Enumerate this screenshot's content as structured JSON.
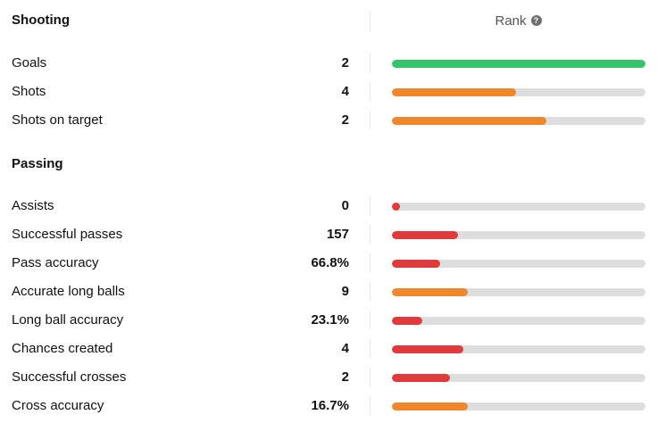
{
  "header": {
    "rank_label": "Rank",
    "help_glyph": "?"
  },
  "colors": {
    "good": "#35c46a",
    "average": "#f0872a",
    "poor": "#e03a3a",
    "track": "#dedede"
  },
  "sections": [
    {
      "title": "Shooting",
      "stats": [
        {
          "label": "Goals",
          "value": "2",
          "rank_fraction": 1.0,
          "tier": "good"
        },
        {
          "label": "Shots",
          "value": "4",
          "rank_fraction": 0.49,
          "tier": "average"
        },
        {
          "label": "Shots on target",
          "value": "2",
          "rank_fraction": 0.61,
          "tier": "average"
        }
      ]
    },
    {
      "title": "Passing",
      "stats": [
        {
          "label": "Assists",
          "value": "0",
          "rank_fraction": 0.03,
          "tier": "poor"
        },
        {
          "label": "Successful passes",
          "value": "157",
          "rank_fraction": 0.26,
          "tier": "poor"
        },
        {
          "label": "Pass accuracy",
          "value": "66.8%",
          "rank_fraction": 0.19,
          "tier": "poor"
        },
        {
          "label": "Accurate long balls",
          "value": "9",
          "rank_fraction": 0.3,
          "tier": "average"
        },
        {
          "label": "Long ball accuracy",
          "value": "23.1%",
          "rank_fraction": 0.12,
          "tier": "poor"
        },
        {
          "label": "Chances created",
          "value": "4",
          "rank_fraction": 0.28,
          "tier": "poor"
        },
        {
          "label": "Successful crosses",
          "value": "2",
          "rank_fraction": 0.23,
          "tier": "poor"
        },
        {
          "label": "Cross accuracy",
          "value": "16.7%",
          "rank_fraction": 0.3,
          "tier": "average"
        }
      ]
    }
  ]
}
